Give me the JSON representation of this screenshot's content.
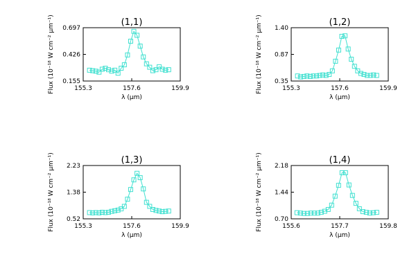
{
  "figure": {
    "series_color": "#40e0d0"
  },
  "chart_data": [
    {
      "type": "line",
      "marker": "square",
      "title": "(1,1)",
      "xlabel": "λ (μm)",
      "ylabel": "Flux (10⁻¹⁸ W cm⁻² μm⁻¹)",
      "xlim": [
        155.3,
        159.9
      ],
      "ylim": [
        0.155,
        0.697
      ],
      "xticks": [
        "155.3",
        "157.6",
        "159.9"
      ],
      "yticks": [
        "0.155",
        "0.426",
        "0.697"
      ],
      "x": [
        155.6,
        155.75,
        155.9,
        156.05,
        156.2,
        156.35,
        156.5,
        156.65,
        156.8,
        156.95,
        157.1,
        157.25,
        157.4,
        157.55,
        157.7,
        157.85,
        158.0,
        158.15,
        158.3,
        158.45,
        158.6,
        158.75,
        158.9,
        159.05,
        159.2,
        159.35
      ],
      "y": [
        0.265,
        0.26,
        0.255,
        0.245,
        0.275,
        0.285,
        0.27,
        0.255,
        0.265,
        0.235,
        0.285,
        0.32,
        0.42,
        0.56,
        0.66,
        0.62,
        0.51,
        0.4,
        0.33,
        0.295,
        0.26,
        0.27,
        0.3,
        0.275,
        0.265,
        0.27
      ]
    },
    {
      "type": "line",
      "marker": "square",
      "title": "(1,2)",
      "xlabel": "λ (μm)",
      "ylabel": "Flux (10⁻¹⁸ W cm⁻² μm⁻¹)",
      "xlim": [
        155.3,
        159.9
      ],
      "ylim": [
        0.35,
        1.4
      ],
      "xticks": [
        "155.3",
        "157.6",
        "159.9"
      ],
      "yticks": [
        "0.35",
        "0.87",
        "1.40"
      ],
      "x": [
        155.6,
        155.75,
        155.9,
        156.05,
        156.2,
        156.35,
        156.5,
        156.65,
        156.8,
        156.95,
        157.1,
        157.25,
        157.4,
        157.55,
        157.7,
        157.85,
        158.0,
        158.15,
        158.3,
        158.45,
        158.6,
        158.75,
        158.9,
        159.05,
        159.2,
        159.35
      ],
      "y": [
        0.45,
        0.43,
        0.44,
        0.45,
        0.44,
        0.45,
        0.45,
        0.46,
        0.47,
        0.46,
        0.48,
        0.55,
        0.74,
        0.96,
        1.23,
        1.24,
        0.98,
        0.78,
        0.64,
        0.55,
        0.5,
        0.48,
        0.46,
        0.46,
        0.47,
        0.46
      ]
    },
    {
      "type": "line",
      "marker": "square",
      "title": "(1,3)",
      "xlabel": "λ (μm)",
      "ylabel": "Flux (10⁻¹⁸ W cm⁻² μm⁻¹)",
      "xlim": [
        155.3,
        159.9
      ],
      "ylim": [
        0.52,
        2.23
      ],
      "xticks": [
        "155.3",
        "157.6",
        "159.9"
      ],
      "yticks": [
        "0.52",
        "1.38",
        "2.23"
      ],
      "x": [
        155.6,
        155.75,
        155.9,
        156.05,
        156.2,
        156.35,
        156.5,
        156.65,
        156.8,
        156.95,
        157.1,
        157.25,
        157.4,
        157.55,
        157.7,
        157.85,
        158.0,
        158.15,
        158.3,
        158.45,
        158.6,
        158.75,
        158.9,
        159.05,
        159.2,
        159.35
      ],
      "y": [
        0.72,
        0.71,
        0.72,
        0.71,
        0.73,
        0.72,
        0.73,
        0.76,
        0.78,
        0.8,
        0.84,
        0.92,
        1.15,
        1.46,
        1.77,
        1.98,
        1.84,
        1.48,
        1.05,
        0.92,
        0.82,
        0.79,
        0.77,
        0.75,
        0.76,
        0.77
      ]
    },
    {
      "type": "line",
      "marker": "square",
      "title": "(1,4)",
      "xlabel": "λ (μm)",
      "ylabel": "Flux (10⁻¹⁸ W cm⁻² μm⁻¹)",
      "xlim": [
        155.6,
        159.8
      ],
      "ylim": [
        0.7,
        2.18
      ],
      "xticks": [
        "155.6",
        "157.7",
        "159.8"
      ],
      "yticks": [
        "0.70",
        "1.44",
        "2.18"
      ],
      "x": [
        155.85,
        156.0,
        156.15,
        156.3,
        156.45,
        156.6,
        156.75,
        156.9,
        157.05,
        157.2,
        157.35,
        157.5,
        157.65,
        157.8,
        157.95,
        158.1,
        158.25,
        158.4,
        158.55,
        158.7,
        158.85,
        159.0,
        159.15,
        159.3
      ],
      "y": [
        0.87,
        0.86,
        0.85,
        0.85,
        0.86,
        0.86,
        0.86,
        0.88,
        0.91,
        0.96,
        1.08,
        1.33,
        1.63,
        1.98,
        1.98,
        1.64,
        1.35,
        1.13,
        0.98,
        0.9,
        0.88,
        0.86,
        0.87,
        0.88
      ]
    }
  ]
}
